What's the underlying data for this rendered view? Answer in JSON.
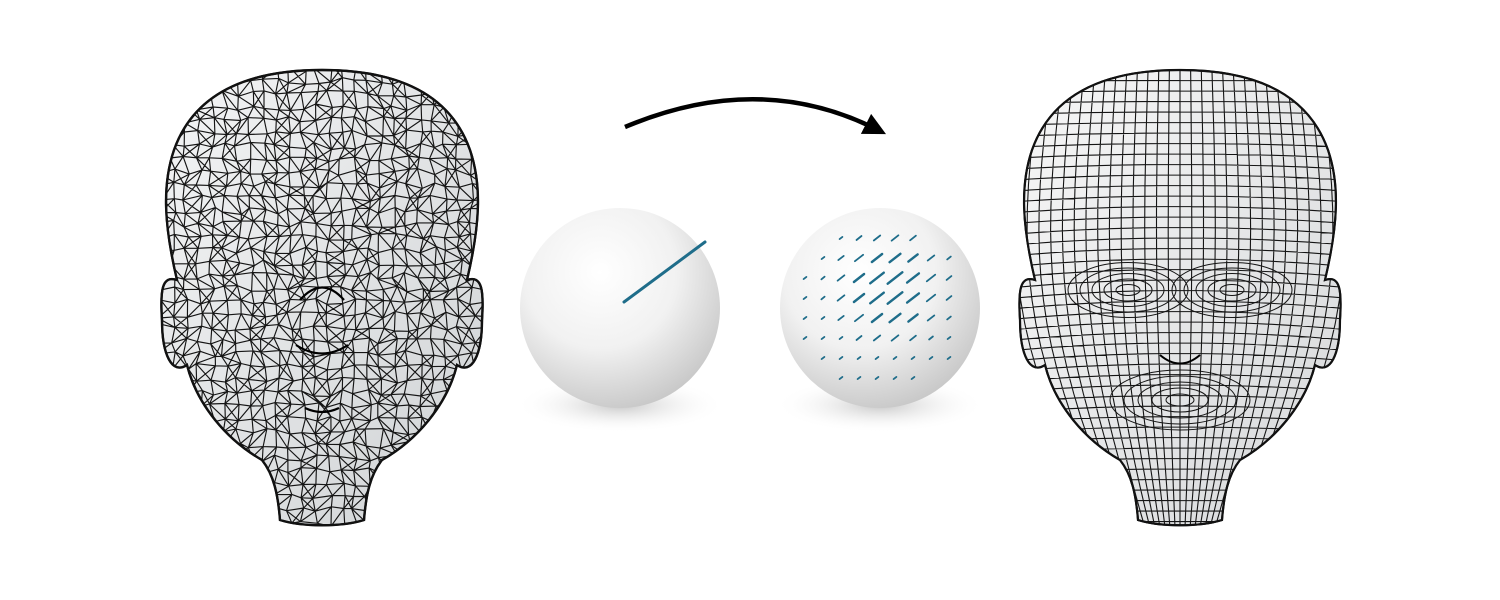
{
  "figure": {
    "panels": [
      {
        "id": "tri-mesh-head",
        "kind": "triangle-mesh-head"
      },
      {
        "id": "sphere-single-direction",
        "kind": "sphere",
        "directions": 1
      },
      {
        "id": "sphere-direction-field",
        "kind": "sphere",
        "directions": "many"
      },
      {
        "id": "quad-mesh-head",
        "kind": "quad-mesh-head"
      }
    ],
    "colors": {
      "mesh_line": "#111111",
      "mesh_fill": "#e9ebec",
      "sphere_fill": "#f2f2f2",
      "direction_stroke": "#1f6d8a",
      "arrow": "#000000",
      "background": "#ffffff"
    }
  }
}
